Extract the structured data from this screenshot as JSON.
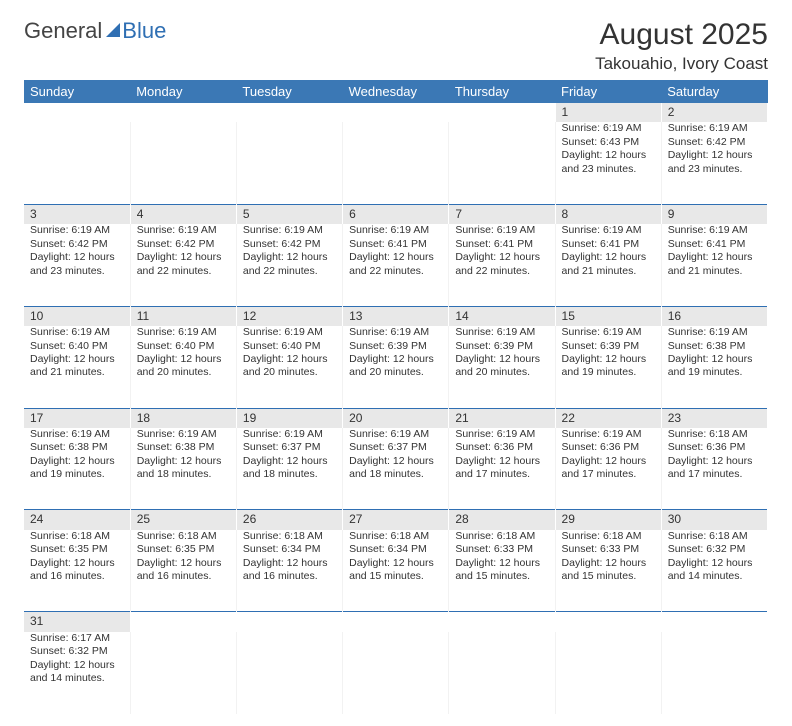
{
  "logo": {
    "text1": "General",
    "text2": "Blue"
  },
  "header": {
    "month": "August 2025",
    "location": "Takouahio, Ivory Coast"
  },
  "colors": {
    "header_bg": "#3b78b5",
    "header_text": "#ffffff",
    "daynum_bg": "#e8e8e8",
    "sep": "#2f6fb3",
    "text": "#333333"
  },
  "columns": [
    "Sunday",
    "Monday",
    "Tuesday",
    "Wednesday",
    "Thursday",
    "Friday",
    "Saturday"
  ],
  "weeks": [
    {
      "nums": [
        "",
        "",
        "",
        "",
        "",
        "1",
        "2"
      ],
      "cells": [
        {
          "sunrise": "",
          "sunset": "",
          "daylight": ""
        },
        {
          "sunrise": "",
          "sunset": "",
          "daylight": ""
        },
        {
          "sunrise": "",
          "sunset": "",
          "daylight": ""
        },
        {
          "sunrise": "",
          "sunset": "",
          "daylight": ""
        },
        {
          "sunrise": "",
          "sunset": "",
          "daylight": ""
        },
        {
          "sunrise": "Sunrise: 6:19 AM",
          "sunset": "Sunset: 6:43 PM",
          "daylight": "Daylight: 12 hours and 23 minutes."
        },
        {
          "sunrise": "Sunrise: 6:19 AM",
          "sunset": "Sunset: 6:42 PM",
          "daylight": "Daylight: 12 hours and 23 minutes."
        }
      ]
    },
    {
      "nums": [
        "3",
        "4",
        "5",
        "6",
        "7",
        "8",
        "9"
      ],
      "cells": [
        {
          "sunrise": "Sunrise: 6:19 AM",
          "sunset": "Sunset: 6:42 PM",
          "daylight": "Daylight: 12 hours and 23 minutes."
        },
        {
          "sunrise": "Sunrise: 6:19 AM",
          "sunset": "Sunset: 6:42 PM",
          "daylight": "Daylight: 12 hours and 22 minutes."
        },
        {
          "sunrise": "Sunrise: 6:19 AM",
          "sunset": "Sunset: 6:42 PM",
          "daylight": "Daylight: 12 hours and 22 minutes."
        },
        {
          "sunrise": "Sunrise: 6:19 AM",
          "sunset": "Sunset: 6:41 PM",
          "daylight": "Daylight: 12 hours and 22 minutes."
        },
        {
          "sunrise": "Sunrise: 6:19 AM",
          "sunset": "Sunset: 6:41 PM",
          "daylight": "Daylight: 12 hours and 22 minutes."
        },
        {
          "sunrise": "Sunrise: 6:19 AM",
          "sunset": "Sunset: 6:41 PM",
          "daylight": "Daylight: 12 hours and 21 minutes."
        },
        {
          "sunrise": "Sunrise: 6:19 AM",
          "sunset": "Sunset: 6:41 PM",
          "daylight": "Daylight: 12 hours and 21 minutes."
        }
      ]
    },
    {
      "nums": [
        "10",
        "11",
        "12",
        "13",
        "14",
        "15",
        "16"
      ],
      "cells": [
        {
          "sunrise": "Sunrise: 6:19 AM",
          "sunset": "Sunset: 6:40 PM",
          "daylight": "Daylight: 12 hours and 21 minutes."
        },
        {
          "sunrise": "Sunrise: 6:19 AM",
          "sunset": "Sunset: 6:40 PM",
          "daylight": "Daylight: 12 hours and 20 minutes."
        },
        {
          "sunrise": "Sunrise: 6:19 AM",
          "sunset": "Sunset: 6:40 PM",
          "daylight": "Daylight: 12 hours and 20 minutes."
        },
        {
          "sunrise": "Sunrise: 6:19 AM",
          "sunset": "Sunset: 6:39 PM",
          "daylight": "Daylight: 12 hours and 20 minutes."
        },
        {
          "sunrise": "Sunrise: 6:19 AM",
          "sunset": "Sunset: 6:39 PM",
          "daylight": "Daylight: 12 hours and 20 minutes."
        },
        {
          "sunrise": "Sunrise: 6:19 AM",
          "sunset": "Sunset: 6:39 PM",
          "daylight": "Daylight: 12 hours and 19 minutes."
        },
        {
          "sunrise": "Sunrise: 6:19 AM",
          "sunset": "Sunset: 6:38 PM",
          "daylight": "Daylight: 12 hours and 19 minutes."
        }
      ]
    },
    {
      "nums": [
        "17",
        "18",
        "19",
        "20",
        "21",
        "22",
        "23"
      ],
      "cells": [
        {
          "sunrise": "Sunrise: 6:19 AM",
          "sunset": "Sunset: 6:38 PM",
          "daylight": "Daylight: 12 hours and 19 minutes."
        },
        {
          "sunrise": "Sunrise: 6:19 AM",
          "sunset": "Sunset: 6:38 PM",
          "daylight": "Daylight: 12 hours and 18 minutes."
        },
        {
          "sunrise": "Sunrise: 6:19 AM",
          "sunset": "Sunset: 6:37 PM",
          "daylight": "Daylight: 12 hours and 18 minutes."
        },
        {
          "sunrise": "Sunrise: 6:19 AM",
          "sunset": "Sunset: 6:37 PM",
          "daylight": "Daylight: 12 hours and 18 minutes."
        },
        {
          "sunrise": "Sunrise: 6:19 AM",
          "sunset": "Sunset: 6:36 PM",
          "daylight": "Daylight: 12 hours and 17 minutes."
        },
        {
          "sunrise": "Sunrise: 6:19 AM",
          "sunset": "Sunset: 6:36 PM",
          "daylight": "Daylight: 12 hours and 17 minutes."
        },
        {
          "sunrise": "Sunrise: 6:18 AM",
          "sunset": "Sunset: 6:36 PM",
          "daylight": "Daylight: 12 hours and 17 minutes."
        }
      ]
    },
    {
      "nums": [
        "24",
        "25",
        "26",
        "27",
        "28",
        "29",
        "30"
      ],
      "cells": [
        {
          "sunrise": "Sunrise: 6:18 AM",
          "sunset": "Sunset: 6:35 PM",
          "daylight": "Daylight: 12 hours and 16 minutes."
        },
        {
          "sunrise": "Sunrise: 6:18 AM",
          "sunset": "Sunset: 6:35 PM",
          "daylight": "Daylight: 12 hours and 16 minutes."
        },
        {
          "sunrise": "Sunrise: 6:18 AM",
          "sunset": "Sunset: 6:34 PM",
          "daylight": "Daylight: 12 hours and 16 minutes."
        },
        {
          "sunrise": "Sunrise: 6:18 AM",
          "sunset": "Sunset: 6:34 PM",
          "daylight": "Daylight: 12 hours and 15 minutes."
        },
        {
          "sunrise": "Sunrise: 6:18 AM",
          "sunset": "Sunset: 6:33 PM",
          "daylight": "Daylight: 12 hours and 15 minutes."
        },
        {
          "sunrise": "Sunrise: 6:18 AM",
          "sunset": "Sunset: 6:33 PM",
          "daylight": "Daylight: 12 hours and 15 minutes."
        },
        {
          "sunrise": "Sunrise: 6:18 AM",
          "sunset": "Sunset: 6:32 PM",
          "daylight": "Daylight: 12 hours and 14 minutes."
        }
      ]
    },
    {
      "nums": [
        "31",
        "",
        "",
        "",
        "",
        "",
        ""
      ],
      "cells": [
        {
          "sunrise": "Sunrise: 6:17 AM",
          "sunset": "Sunset: 6:32 PM",
          "daylight": "Daylight: 12 hours and 14 minutes."
        },
        {
          "sunrise": "",
          "sunset": "",
          "daylight": ""
        },
        {
          "sunrise": "",
          "sunset": "",
          "daylight": ""
        },
        {
          "sunrise": "",
          "sunset": "",
          "daylight": ""
        },
        {
          "sunrise": "",
          "sunset": "",
          "daylight": ""
        },
        {
          "sunrise": "",
          "sunset": "",
          "daylight": ""
        },
        {
          "sunrise": "",
          "sunset": "",
          "daylight": ""
        }
      ]
    }
  ]
}
